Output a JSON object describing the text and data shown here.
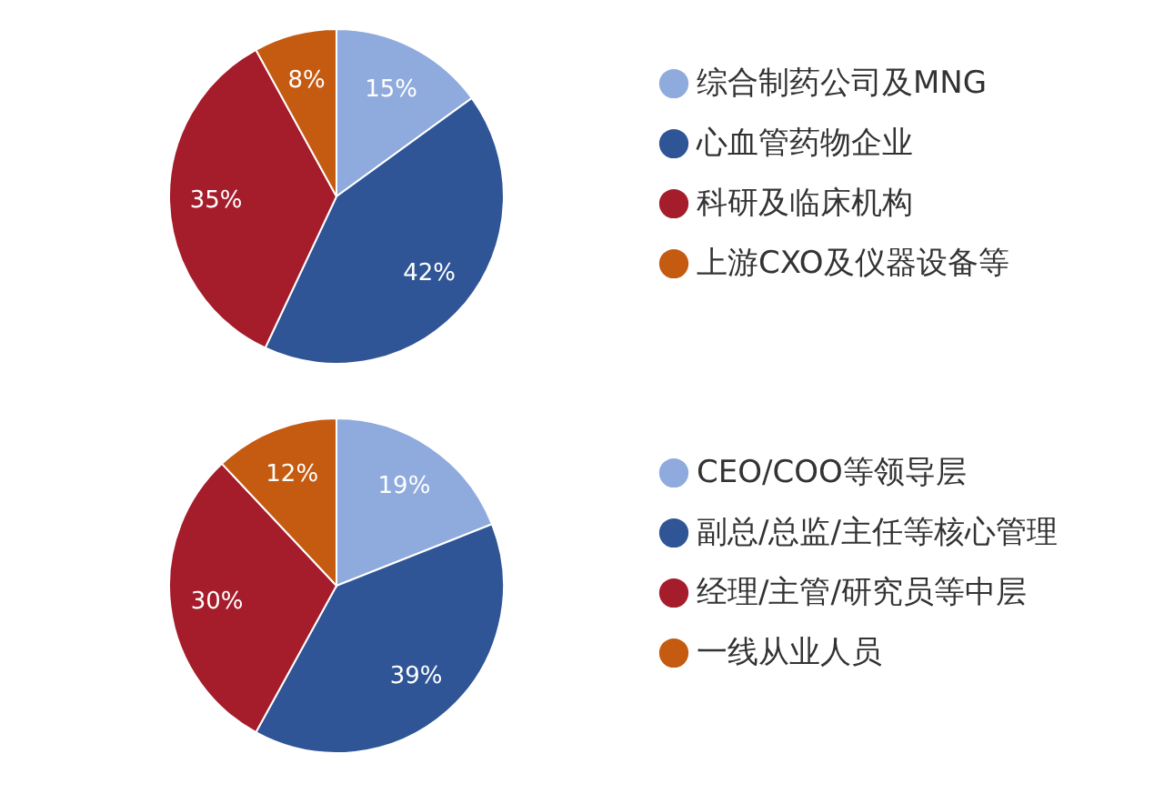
{
  "chart_data": [
    {
      "type": "pie",
      "categories": [
        "综合制药公司及MNG",
        "心血管药物企业",
        "科研及临床机构",
        "上游CXO及仪器设备等"
      ],
      "values": [
        15,
        42,
        35,
        8
      ],
      "value_labels": [
        "15%",
        "42%",
        "35%",
        "8%"
      ],
      "colors": [
        "#8faadc",
        "#2f5597",
        "#a51c2b",
        "#c55a11"
      ],
      "legend": "right"
    },
    {
      "type": "pie",
      "categories": [
        "CEO/COO等领导层",
        "副总/总监/主任等核心管理",
        "经理/主管/研究员等中层",
        "一线从业人员"
      ],
      "values": [
        19,
        39,
        30,
        12
      ],
      "value_labels": [
        "19%",
        "39%",
        "30%",
        "12%"
      ],
      "colors": [
        "#8faadc",
        "#2f5597",
        "#a51c2b",
        "#c55a11"
      ],
      "legend": "right"
    }
  ]
}
